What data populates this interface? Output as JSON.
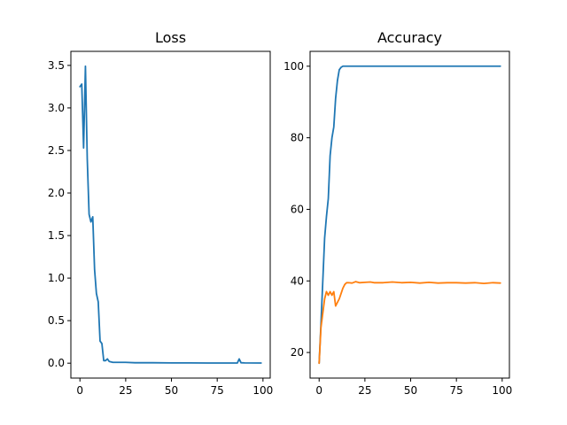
{
  "colors": {
    "blue": "#1f77b4",
    "orange": "#ff7f0e"
  },
  "chart_data": [
    {
      "type": "line",
      "title": "Loss",
      "xlabel": "",
      "ylabel": "",
      "xlim": [
        -4.95,
        103.95
      ],
      "ylim": [
        -0.175,
        3.665
      ],
      "xticks": [
        0,
        25,
        50,
        75,
        100
      ],
      "xtick_labels": [
        "0",
        "25",
        "50",
        "75",
        "100"
      ],
      "yticks": [
        0,
        0.5,
        1,
        1.5,
        2,
        2.5,
        3,
        3.5
      ],
      "ytick_labels": [
        "0.0",
        "0.5",
        "1.0",
        "1.5",
        "2.0",
        "2.5",
        "3.0",
        "3.5"
      ],
      "grid": false,
      "series": [
        {
          "color": "#1f77b4",
          "points": [
            [
              0,
              3.25
            ],
            [
              1,
              3.28
            ],
            [
              2,
              2.53
            ],
            [
              3,
              3.49
            ],
            [
              4,
              2.4
            ],
            [
              5,
              1.75
            ],
            [
              6,
              1.66
            ],
            [
              7,
              1.72
            ],
            [
              8,
              1.1
            ],
            [
              9,
              0.82
            ],
            [
              10,
              0.72
            ],
            [
              11,
              0.26
            ],
            [
              12,
              0.23
            ],
            [
              13,
              0.03
            ],
            [
              14,
              0.03
            ],
            [
              15,
              0.05
            ],
            [
              16,
              0.02
            ],
            [
              18,
              0.01
            ],
            [
              20,
              0.01
            ],
            [
              25,
              0.01
            ],
            [
              30,
              0.005
            ],
            [
              40,
              0.005
            ],
            [
              50,
              0.003
            ],
            [
              60,
              0.003
            ],
            [
              70,
              0.002
            ],
            [
              80,
              0.002
            ],
            [
              86,
              0.002
            ],
            [
              87,
              0.05
            ],
            [
              88,
              0.005
            ],
            [
              90,
              0.003
            ],
            [
              99,
              0.002
            ]
          ]
        }
      ]
    },
    {
      "type": "line",
      "title": "Accuracy",
      "xlabel": "",
      "ylabel": "",
      "xlim": [
        -4.95,
        103.95
      ],
      "ylim": [
        12.85,
        104.15
      ],
      "xticks": [
        0,
        25,
        50,
        75,
        100
      ],
      "xtick_labels": [
        "0",
        "25",
        "50",
        "75",
        "100"
      ],
      "yticks": [
        20,
        40,
        60,
        80,
        100
      ],
      "ytick_labels": [
        "20",
        "40",
        "60",
        "80",
        "100"
      ],
      "grid": false,
      "series": [
        {
          "color": "#1f77b4",
          "points": [
            [
              0,
              17
            ],
            [
              1,
              28
            ],
            [
              2,
              40
            ],
            [
              3,
              52
            ],
            [
              4,
              58
            ],
            [
              5,
              63
            ],
            [
              6,
              75
            ],
            [
              7,
              80
            ],
            [
              8,
              83
            ],
            [
              9,
              91
            ],
            [
              10,
              96
            ],
            [
              11,
              99
            ],
            [
              12,
              99.7
            ],
            [
              13,
              100
            ],
            [
              15,
              100
            ],
            [
              20,
              100
            ],
            [
              30,
              100
            ],
            [
              40,
              100
            ],
            [
              50,
              100
            ],
            [
              60,
              100
            ],
            [
              70,
              100
            ],
            [
              80,
              100
            ],
            [
              90,
              100
            ],
            [
              99,
              100
            ]
          ]
        },
        {
          "color": "#ff7f0e",
          "points": [
            [
              0,
              17
            ],
            [
              1,
              27
            ],
            [
              2,
              31
            ],
            [
              3,
              35
            ],
            [
              4,
              37
            ],
            [
              5,
              36
            ],
            [
              6,
              37
            ],
            [
              7,
              36
            ],
            [
              8,
              37
            ],
            [
              9,
              33
            ],
            [
              10,
              34
            ],
            [
              11,
              35
            ],
            [
              12,
              36.5
            ],
            [
              13,
              38
            ],
            [
              14,
              39
            ],
            [
              15,
              39.5
            ],
            [
              16,
              39.5
            ],
            [
              18,
              39.4
            ],
            [
              20,
              39.8
            ],
            [
              22,
              39.5
            ],
            [
              25,
              39.6
            ],
            [
              28,
              39.7
            ],
            [
              30,
              39.5
            ],
            [
              35,
              39.5
            ],
            [
              40,
              39.7
            ],
            [
              45,
              39.5
            ],
            [
              50,
              39.6
            ],
            [
              55,
              39.4
            ],
            [
              60,
              39.6
            ],
            [
              65,
              39.4
            ],
            [
              70,
              39.5
            ],
            [
              75,
              39.5
            ],
            [
              80,
              39.4
            ],
            [
              85,
              39.5
            ],
            [
              90,
              39.3
            ],
            [
              95,
              39.5
            ],
            [
              99,
              39.4
            ]
          ]
        }
      ]
    }
  ]
}
